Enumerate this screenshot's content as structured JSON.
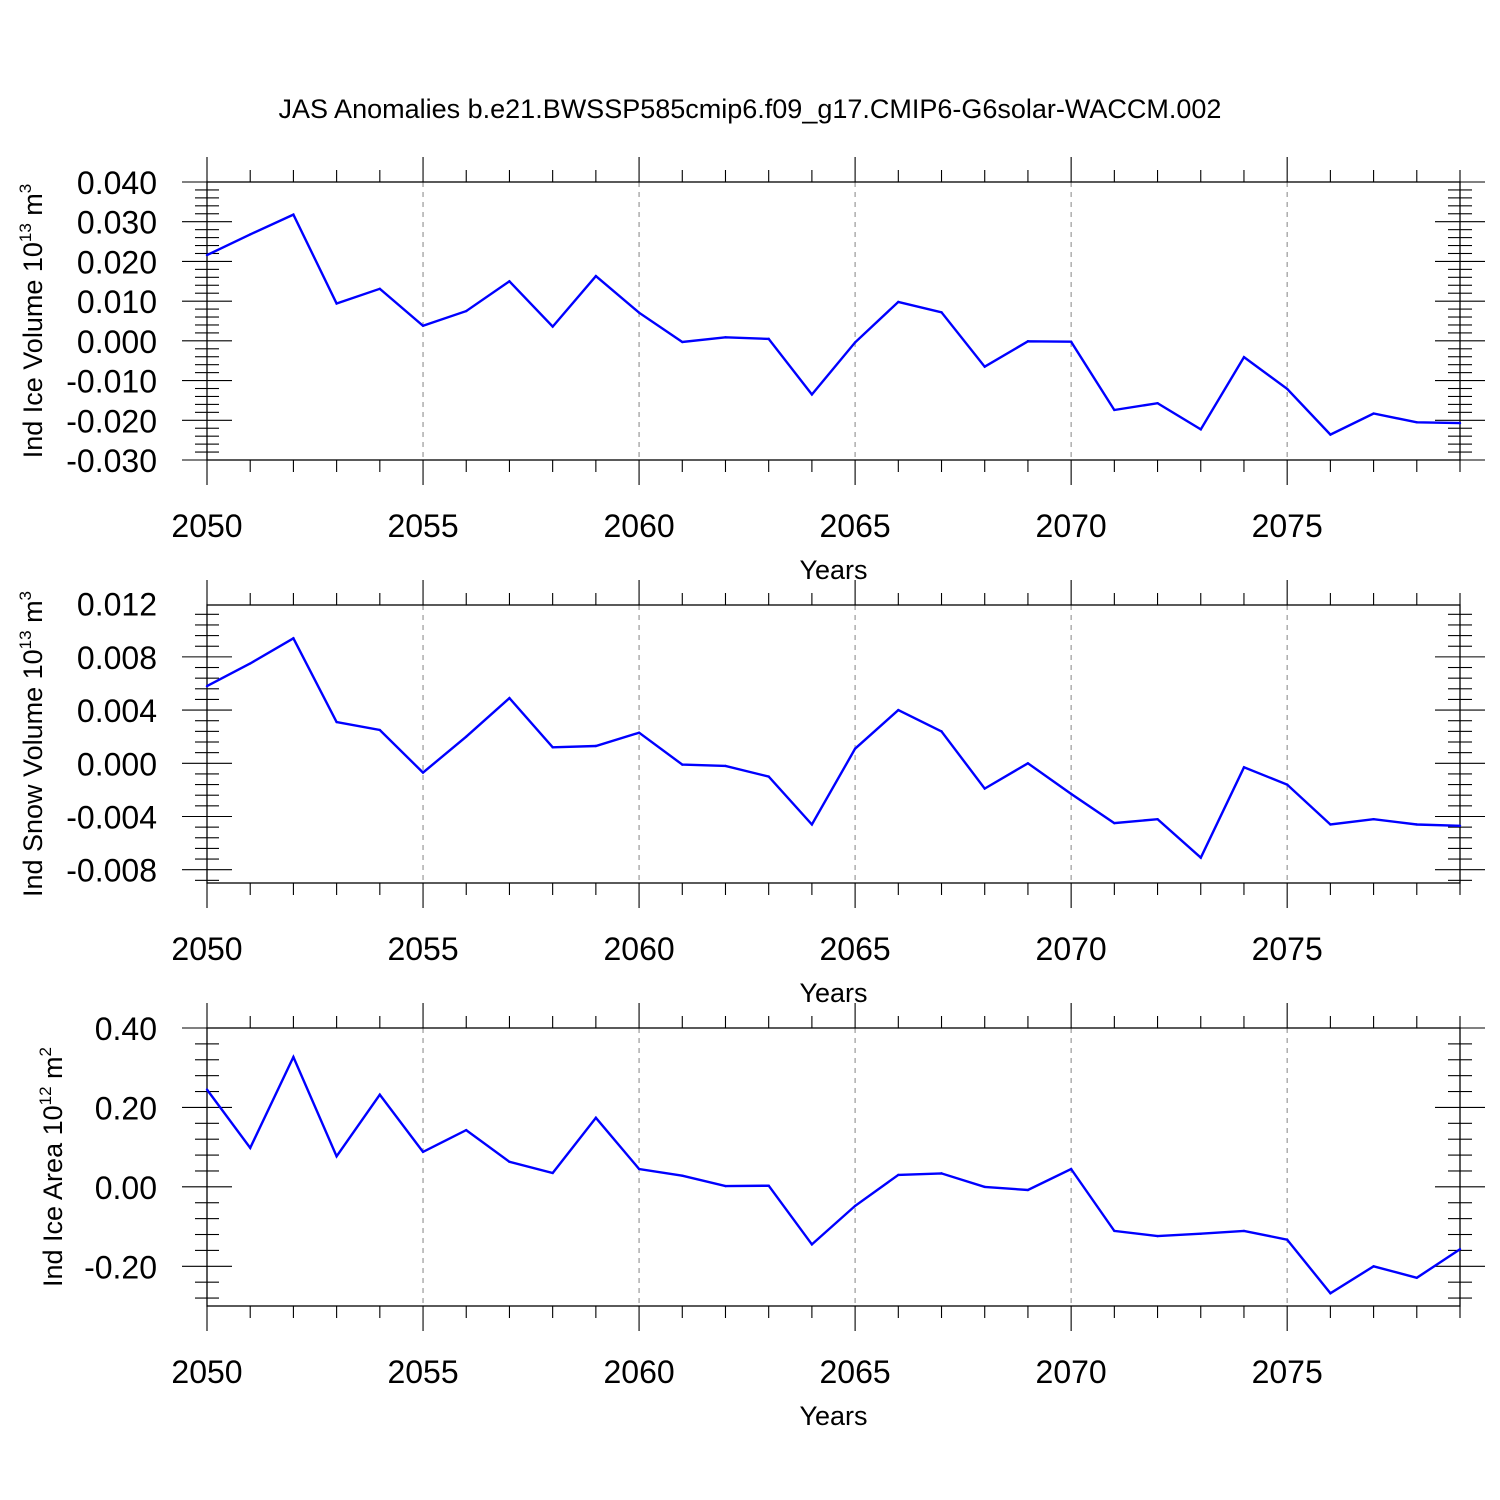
{
  "title": "JAS Anomalies b.e21.BWSSP585cmip6.f09_g17.CMIP6-G6solar-WACCM.002",
  "colors": {
    "line": "#0000ff",
    "axis": "#000000",
    "grid": "#999999"
  },
  "chart_data": [
    {
      "type": "line",
      "ylabel": "Ind Ice Volume 10",
      "ylabel_exp": "13",
      "ylabel_unit": " m",
      "ylabel_unit_exp": "3",
      "xlabel": "Years",
      "xlim": [
        2050,
        2079
      ],
      "ylim": [
        -0.03,
        0.04
      ],
      "y_ticks": [
        "0.040",
        "0.030",
        "0.020",
        "0.010",
        "0.000",
        "-0.010",
        "-0.020",
        "-0.030"
      ],
      "y_tick_values": [
        0.04,
        0.03,
        0.02,
        0.01,
        0.0,
        -0.01,
        -0.02,
        -0.03
      ],
      "x_ticks": [
        "2050",
        "2055",
        "2060",
        "2065",
        "2070",
        "2075"
      ],
      "x_tick_values": [
        2050,
        2055,
        2060,
        2065,
        2070,
        2075
      ],
      "grid": "dashed vertical at major x ticks",
      "x": [
        2050,
        2051,
        2052,
        2053,
        2054,
        2055,
        2056,
        2057,
        2058,
        2059,
        2060,
        2061,
        2062,
        2063,
        2064,
        2065,
        2066,
        2067,
        2068,
        2069,
        2070,
        2071,
        2072,
        2073,
        2074,
        2075,
        2076,
        2077,
        2078,
        2079
      ],
      "values": [
        0.0216,
        0.0268,
        0.0318,
        0.0094,
        0.0131,
        0.0038,
        0.0075,
        0.015,
        0.0036,
        0.0163,
        0.0071,
        -0.0003,
        0.0009,
        0.0005,
        -0.0135,
        -0.0004,
        0.0098,
        0.0072,
        -0.0065,
        -0.0001,
        -0.0002,
        -0.0174,
        -0.0157,
        -0.0223,
        -0.0041,
        -0.0121,
        -0.0236,
        -0.0183,
        -0.0205,
        -0.0207
      ]
    },
    {
      "type": "line",
      "ylabel": "Ind Snow Volume 10",
      "ylabel_exp": "13",
      "ylabel_unit": " m",
      "ylabel_unit_exp": "3",
      "xlabel": "Years",
      "xlim": [
        2050,
        2079
      ],
      "ylim": [
        -0.009,
        0.0119
      ],
      "y_ticks": [
        "0.012",
        "0.008",
        "0.004",
        "0.000",
        "-0.004",
        "-0.008"
      ],
      "y_tick_values": [
        0.012,
        0.008,
        0.004,
        0.0,
        -0.004,
        -0.008
      ],
      "x_ticks": [
        "2050",
        "2055",
        "2060",
        "2065",
        "2070",
        "2075"
      ],
      "x_tick_values": [
        2050,
        2055,
        2060,
        2065,
        2070,
        2075
      ],
      "grid": "dashed vertical at major x ticks",
      "x": [
        2050,
        2051,
        2052,
        2053,
        2054,
        2055,
        2056,
        2057,
        2058,
        2059,
        2060,
        2061,
        2062,
        2063,
        2064,
        2065,
        2066,
        2067,
        2068,
        2069,
        2070,
        2071,
        2072,
        2073,
        2074,
        2075,
        2076,
        2077,
        2078,
        2079
      ],
      "values": [
        0.0058,
        0.0075,
        0.0094,
        0.0031,
        0.0025,
        -0.0007,
        0.002,
        0.0049,
        0.0012,
        0.0013,
        0.0023,
        -0.0001,
        -0.0002,
        -0.001,
        -0.0046,
        0.0011,
        0.004,
        0.0024,
        -0.0019,
        0.0,
        -0.0023,
        -0.0045,
        -0.0042,
        -0.0071,
        -0.0003,
        -0.0016,
        -0.0046,
        -0.0042,
        -0.0046,
        -0.0047
      ]
    },
    {
      "type": "line",
      "ylabel": "Ind Ice Area 10",
      "ylabel_exp": "12",
      "ylabel_unit": " m",
      "ylabel_unit_exp": "2",
      "xlabel": "Years",
      "xlim": [
        2050,
        2079
      ],
      "ylim": [
        -0.3,
        0.4
      ],
      "y_ticks": [
        "0.40",
        "0.20",
        "0.00",
        "-0.20"
      ],
      "y_tick_values": [
        0.4,
        0.2,
        0.0,
        -0.2
      ],
      "x_ticks": [
        "2050",
        "2055",
        "2060",
        "2065",
        "2070",
        "2075"
      ],
      "x_tick_values": [
        2050,
        2055,
        2060,
        2065,
        2070,
        2075
      ],
      "grid": "dashed vertical at major x ticks",
      "x": [
        2050,
        2051,
        2052,
        2053,
        2054,
        2055,
        2056,
        2057,
        2058,
        2059,
        2060,
        2061,
        2062,
        2063,
        2064,
        2065,
        2066,
        2067,
        2068,
        2069,
        2070,
        2071,
        2072,
        2073,
        2074,
        2075,
        2076,
        2077,
        2078,
        2079
      ],
      "values": [
        0.245,
        0.098,
        0.327,
        0.077,
        0.232,
        0.088,
        0.143,
        0.063,
        0.035,
        0.174,
        0.045,
        0.028,
        0.002,
        0.003,
        -0.145,
        -0.048,
        0.03,
        0.034,
        0.0,
        -0.008,
        0.045,
        -0.111,
        -0.124,
        -0.118,
        -0.111,
        -0.133,
        -0.268,
        -0.2,
        -0.229,
        -0.157
      ]
    }
  ]
}
